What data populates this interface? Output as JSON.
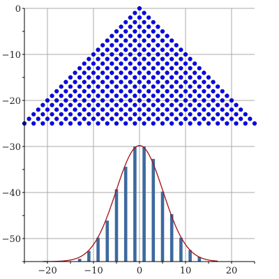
{
  "chart_data": {
    "type": "scatter",
    "title": "",
    "xlabel": "",
    "ylabel": "",
    "xlim": [
      -25,
      25
    ],
    "ylim": [
      -55,
      0
    ],
    "grid": true,
    "x_ticks": [
      -20,
      -10,
      0,
      10,
      20
    ],
    "y_ticks": [
      0,
      -10,
      -20,
      -30,
      -40,
      -50
    ],
    "x_tick_labels": [
      "−20",
      "−10",
      "0",
      "10",
      "20"
    ],
    "y_tick_labels": [
      "0",
      "−10",
      "−20",
      "−30",
      "−40",
      "−50"
    ],
    "galton_pegs": {
      "description_note": "triangular lattice of points: row r (0..25) at y = -r, x from -r to r in steps of 2",
      "rows": 26,
      "top_y": 0,
      "x_step": 2,
      "color": "#0000ff"
    },
    "histogram": {
      "type": "bar",
      "color": "#3d6a9e",
      "x": [
        -13,
        -11,
        -9,
        -7,
        -5,
        -3,
        -1,
        1,
        3,
        5,
        7,
        9,
        11,
        13
      ],
      "tops": [
        -54.4,
        -52.7,
        -49.8,
        -46.1,
        -39.3,
        -34.4,
        -30.0,
        -30.0,
        -32.7,
        -39.8,
        -44.7,
        -49.8,
        -52.5,
        -54.0
      ],
      "baseline": -55
    },
    "curve": {
      "type": "line",
      "color": "#a01010",
      "x_range": [
        -21,
        17
      ],
      "peak_x": 0,
      "peak_y": -29.8,
      "baseline_y": -55,
      "sigma": 5.1
    }
  }
}
